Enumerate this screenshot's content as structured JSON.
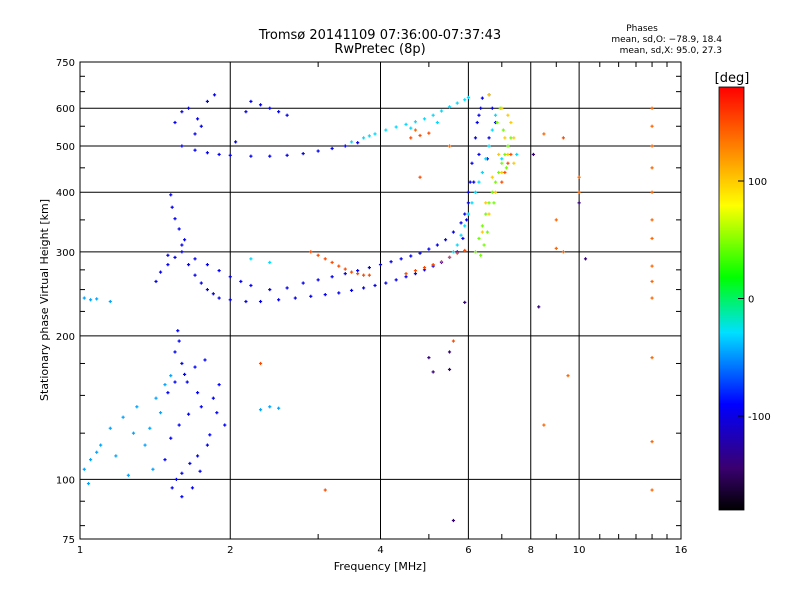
{
  "chart_data": {
    "type": "scatter",
    "title": "Tromsø 20141109 07:36:00-07:37:43",
    "subtitle": "RwPretec (8p)",
    "xlabel": "Frequency [MHz]",
    "ylabel": "Stationary phase Virtual Height [km]",
    "x_scale": "log",
    "y_scale": "log",
    "xlim": [
      1,
      16
    ],
    "ylim": [
      75,
      750
    ],
    "x_ticks": [
      1,
      2,
      4,
      6,
      8,
      10,
      16
    ],
    "y_ticks": [
      75,
      100,
      200,
      300,
      400,
      500,
      600,
      750
    ],
    "grid": true,
    "phase_stats": {
      "header": "Phases",
      "o_line": "mean, sd,O: −78.9, 18.4",
      "x_line": "mean, sd,X:  95.0, 27.3"
    },
    "colorbar": {
      "label": "[deg]",
      "range": [
        -180,
        180
      ],
      "tick_values": [
        100,
        0,
        -100
      ],
      "tick_labels": [
        "100",
        "0",
        "-100"
      ]
    },
    "series": [
      {
        "values": [
          [
            1.56,
            100
          ],
          [
            1.6,
            103
          ],
          [
            1.66,
            108
          ],
          [
            1.72,
            112
          ],
          [
            1.8,
            118
          ],
          [
            1.52,
            122
          ],
          [
            1.58,
            130
          ],
          [
            1.65,
            137
          ],
          [
            1.75,
            142
          ],
          [
            1.85,
            148
          ],
          [
            1.5,
            152
          ],
          [
            1.55,
            160
          ],
          [
            1.62,
            166
          ],
          [
            1.7,
            172
          ],
          [
            1.78,
            178
          ],
          [
            1.9,
            158
          ],
          [
            1.95,
            130
          ],
          [
            1.48,
            110
          ],
          [
            1.53,
            96
          ],
          [
            1.6,
            92
          ],
          [
            1.68,
            96
          ],
          [
            1.74,
            104
          ],
          [
            1.82,
            124
          ],
          [
            1.88,
            138
          ],
          [
            1.55,
            185
          ],
          [
            1.58,
            195
          ],
          [
            1.57,
            205
          ],
          [
            1.6,
            175
          ],
          [
            1.64,
            160
          ],
          [
            1.72,
            152
          ]
        ],
        "phase": -90
      },
      {
        "values": [
          [
            1.02,
            105
          ],
          [
            1.05,
            110
          ],
          [
            1.08,
            114
          ],
          [
            1.04,
            98
          ],
          [
            1.1,
            118
          ],
          [
            1.15,
            128
          ],
          [
            1.22,
            135
          ],
          [
            1.3,
            142
          ],
          [
            1.38,
            128
          ],
          [
            1.42,
            148
          ],
          [
            1.45,
            138
          ],
          [
            1.35,
            118
          ],
          [
            1.28,
            125
          ],
          [
            1.18,
            112
          ],
          [
            1.48,
            158
          ],
          [
            1.52,
            165
          ],
          [
            1.4,
            105
          ],
          [
            1.25,
            102
          ],
          [
            1.02,
            240
          ],
          [
            1.05,
            238
          ],
          [
            1.08,
            239
          ],
          [
            1.15,
            236
          ],
          [
            2.3,
            140
          ],
          [
            2.4,
            142
          ],
          [
            2.5,
            141
          ]
        ],
        "phase": -45
      },
      {
        "values": [
          [
            1.42,
            260
          ],
          [
            1.45,
            272
          ],
          [
            1.5,
            282
          ],
          [
            1.55,
            292
          ],
          [
            1.6,
            300
          ],
          [
            1.62,
            318
          ],
          [
            1.58,
            335
          ],
          [
            1.55,
            352
          ],
          [
            1.53,
            372
          ],
          [
            1.52,
            395
          ],
          [
            1.65,
            282
          ],
          [
            1.7,
            268
          ],
          [
            1.75,
            258
          ],
          [
            1.8,
            250
          ],
          [
            1.85,
            245
          ],
          [
            1.9,
            240
          ],
          [
            2.0,
            238
          ],
          [
            2.15,
            236
          ],
          [
            2.3,
            236
          ],
          [
            2.5,
            238
          ],
          [
            2.7,
            240
          ],
          [
            2.9,
            242
          ],
          [
            3.1,
            244
          ],
          [
            3.3,
            246
          ],
          [
            3.5,
            249
          ],
          [
            3.7,
            252
          ],
          [
            3.9,
            255
          ],
          [
            4.1,
            258
          ],
          [
            4.3,
            262
          ],
          [
            4.5,
            266
          ],
          [
            4.7,
            270
          ],
          [
            4.9,
            275
          ],
          [
            5.1,
            280
          ],
          [
            5.3,
            285
          ],
          [
            5.5,
            292
          ],
          [
            5.7,
            300
          ],
          [
            5.85,
            320
          ],
          [
            5.95,
            350
          ],
          [
            6.0,
            380
          ],
          [
            6.05,
            420
          ],
          [
            6.1,
            460
          ],
          [
            6.2,
            520
          ],
          [
            6.3,
            580
          ],
          [
            6.4,
            630
          ],
          [
            6.3,
            480
          ],
          [
            6.15,
            420
          ],
          [
            6.25,
            560
          ],
          [
            6.35,
            600
          ],
          [
            6.0,
            400
          ],
          [
            5.9,
            360
          ],
          [
            1.5,
            295
          ],
          [
            1.6,
            310
          ],
          [
            1.7,
            290
          ],
          [
            1.8,
            282
          ],
          [
            1.9,
            274
          ],
          [
            2.0,
            266
          ],
          [
            2.1,
            260
          ],
          [
            2.2,
            255
          ],
          [
            2.4,
            250
          ],
          [
            2.6,
            252
          ],
          [
            2.8,
            258
          ],
          [
            3.0,
            262
          ],
          [
            3.2,
            266
          ],
          [
            3.4,
            270
          ],
          [
            3.6,
            274
          ],
          [
            3.8,
            278
          ],
          [
            4.0,
            282
          ],
          [
            4.2,
            286
          ],
          [
            4.4,
            290
          ],
          [
            4.6,
            294
          ],
          [
            4.8,
            298
          ],
          [
            5.0,
            304
          ],
          [
            5.2,
            310
          ],
          [
            5.4,
            318
          ],
          [
            5.6,
            330
          ],
          [
            5.8,
            345
          ],
          [
            1.6,
            500
          ],
          [
            1.7,
            490
          ],
          [
            1.8,
            484
          ],
          [
            1.9,
            480
          ],
          [
            2.0,
            478
          ],
          [
            2.2,
            476
          ],
          [
            2.4,
            476
          ],
          [
            2.6,
            478
          ],
          [
            2.8,
            482
          ],
          [
            3.0,
            488
          ],
          [
            3.2,
            494
          ],
          [
            3.4,
            500
          ],
          [
            3.6,
            508
          ],
          [
            1.55,
            560
          ],
          [
            1.6,
            590
          ],
          [
            1.65,
            600
          ],
          [
            1.72,
            570
          ],
          [
            1.8,
            620
          ],
          [
            1.86,
            640
          ],
          [
            2.2,
            620
          ],
          [
            2.3,
            610
          ],
          [
            2.4,
            600
          ],
          [
            2.5,
            590
          ],
          [
            2.6,
            580
          ],
          [
            1.75,
            550
          ],
          [
            1.7,
            530
          ],
          [
            2.05,
            510
          ],
          [
            2.15,
            590
          ],
          [
            6.6,
            640
          ],
          [
            6.7,
            600
          ],
          [
            6.8,
            560
          ],
          [
            6.6,
            520
          ],
          [
            6.55,
            470
          ]
        ],
        "phase": -95
      },
      {
        "values": [
          [
            3.5,
            510
          ],
          [
            3.7,
            520
          ],
          [
            3.9,
            530
          ],
          [
            4.1,
            540
          ],
          [
            4.3,
            548
          ],
          [
            4.5,
            555
          ],
          [
            4.7,
            562
          ],
          [
            4.9,
            570
          ],
          [
            5.1,
            580
          ],
          [
            5.3,
            592
          ],
          [
            5.5,
            604
          ],
          [
            5.7,
            615
          ],
          [
            5.9,
            625
          ],
          [
            6.0,
            632
          ],
          [
            5.6,
            300
          ],
          [
            5.7,
            310
          ],
          [
            5.8,
            325
          ],
          [
            5.9,
            340
          ],
          [
            6.0,
            360
          ],
          [
            6.1,
            380
          ],
          [
            6.2,
            400
          ],
          [
            6.3,
            420
          ],
          [
            6.4,
            440
          ],
          [
            6.5,
            470
          ],
          [
            6.6,
            500
          ],
          [
            6.7,
            540
          ],
          [
            6.8,
            580
          ],
          [
            7.0,
            470
          ],
          [
            2.2,
            290
          ],
          [
            2.4,
            285
          ],
          [
            7.5,
            480
          ],
          [
            5.2,
            560
          ],
          [
            4.6,
            545
          ],
          [
            3.8,
            525
          ]
        ],
        "phase": -30
      },
      {
        "values": [
          [
            6.2,
            300
          ],
          [
            6.3,
            320
          ],
          [
            6.4,
            340
          ],
          [
            6.5,
            360
          ],
          [
            6.6,
            380
          ],
          [
            6.7,
            400
          ],
          [
            6.8,
            420
          ],
          [
            6.9,
            440
          ],
          [
            7.0,
            460
          ],
          [
            7.1,
            480
          ],
          [
            7.2,
            500
          ],
          [
            7.3,
            520
          ],
          [
            6.85,
            560
          ],
          [
            6.95,
            600
          ],
          [
            7.05,
            540
          ],
          [
            7.15,
            450
          ],
          [
            6.75,
            380
          ],
          [
            6.55,
            330
          ],
          [
            6.45,
            310
          ],
          [
            6.35,
            295
          ]
        ],
        "phase": 45
      },
      {
        "values": [
          [
            6.4,
            330
          ],
          [
            6.6,
            360
          ],
          [
            6.8,
            400
          ],
          [
            7.0,
            440
          ],
          [
            7.2,
            480
          ],
          [
            7.4,
            520
          ],
          [
            7.0,
            600
          ],
          [
            7.2,
            580
          ],
          [
            7.3,
            560
          ],
          [
            7.1,
            520
          ],
          [
            6.9,
            480
          ],
          [
            6.7,
            430
          ],
          [
            6.5,
            380
          ],
          [
            7.4,
            460
          ],
          [
            6.6,
            640
          ]
        ],
        "phase": 100
      },
      {
        "values": [
          [
            2.9,
            300
          ],
          [
            3.0,
            295
          ],
          [
            3.1,
            290
          ],
          [
            3.2,
            285
          ],
          [
            3.3,
            280
          ],
          [
            3.4,
            276
          ],
          [
            3.5,
            272
          ],
          [
            3.6,
            270
          ],
          [
            3.7,
            268
          ],
          [
            3.8,
            268
          ],
          [
            4.5,
            270
          ],
          [
            4.7,
            274
          ],
          [
            4.9,
            278
          ],
          [
            5.1,
            282
          ],
          [
            5.3,
            286
          ],
          [
            5.5,
            292
          ],
          [
            5.7,
            298
          ],
          [
            5.9,
            302
          ],
          [
            4.6,
            520
          ],
          [
            4.8,
            526
          ],
          [
            5.0,
            532
          ],
          [
            7.0,
            420
          ],
          [
            7.1,
            440
          ],
          [
            7.2,
            460
          ],
          [
            7.3,
            480
          ],
          [
            2.3,
            175
          ],
          [
            4.8,
            430
          ],
          [
            3.1,
            95
          ],
          [
            5.6,
            195
          ],
          [
            9.3,
            520
          ]
        ],
        "phase": 150
      },
      {
        "values": [
          [
            14.0,
            600
          ],
          [
            14.0,
            550
          ],
          [
            14.0,
            500
          ],
          [
            14.0,
            450
          ],
          [
            14.0,
            400
          ],
          [
            14.0,
            350
          ],
          [
            14.0,
            320
          ],
          [
            14.0,
            280
          ],
          [
            14.0,
            260
          ],
          [
            14.0,
            240
          ],
          [
            14.0,
            180
          ],
          [
            14.0,
            120
          ],
          [
            14.0,
            95
          ],
          [
            9.0,
            350
          ],
          [
            9.0,
            305
          ],
          [
            8.5,
            530
          ],
          [
            9.3,
            300
          ],
          [
            10.0,
            430
          ],
          [
            10.0,
            400
          ],
          [
            9.5,
            165
          ],
          [
            8.5,
            130
          ],
          [
            5.5,
            500
          ],
          [
            4.7,
            540
          ]
        ],
        "phase": 140
      },
      {
        "values": [
          [
            5.5,
            185
          ],
          [
            5.5,
            170
          ],
          [
            5.6,
            82
          ],
          [
            5.1,
            168
          ],
          [
            5.0,
            180
          ],
          [
            10.0,
            380
          ],
          [
            10.3,
            290
          ],
          [
            8.3,
            230
          ],
          [
            8.1,
            480
          ],
          [
            5.9,
            235
          ]
        ],
        "phase": -140
      }
    ]
  }
}
